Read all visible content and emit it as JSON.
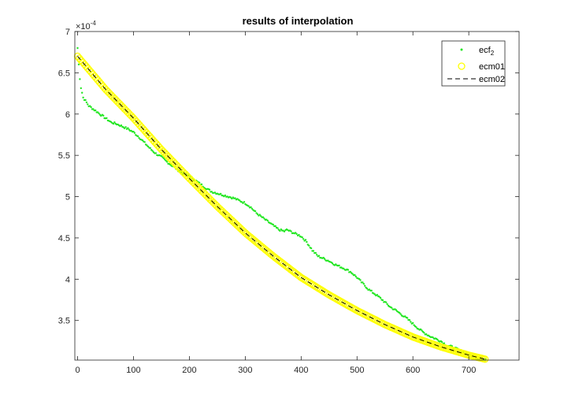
{
  "chart_data": {
    "type": "line",
    "title": "results of interpolation",
    "xlabel": "",
    "ylabel": "",
    "xlim": [
      -5,
      790
    ],
    "ylim": [
      0.000302,
      0.0007
    ],
    "y_exponent_label": "×10",
    "y_exponent_power": "-4",
    "x_ticks": [
      0,
      100,
      200,
      300,
      400,
      500,
      600,
      700
    ],
    "y_ticks": [
      3.5,
      4,
      4.5,
      5,
      5.5,
      6,
      6.5,
      7
    ],
    "y_tick_scale": 0.0001,
    "grid": false,
    "legend_position": "top-right",
    "series": [
      {
        "name": "ecf",
        "name_subscript": "2",
        "style": "dots",
        "color": "#22e622",
        "x": [
          0,
          2,
          5,
          10,
          20,
          30,
          40,
          50,
          60,
          70,
          80,
          90,
          100,
          110,
          120,
          130,
          140,
          150,
          160,
          170,
          180,
          190,
          200,
          210,
          220,
          230,
          240,
          250,
          260,
          270,
          280,
          290,
          300,
          310,
          320,
          330,
          340,
          350,
          360,
          370,
          375,
          380,
          390,
          400,
          410,
          420,
          430,
          440,
          450,
          460,
          470,
          480,
          490,
          500,
          510,
          520,
          530,
          540,
          550,
          560,
          570,
          580,
          590,
          600,
          610,
          620,
          630,
          640,
          650,
          660,
          670,
          680,
          690,
          700,
          710,
          720,
          730
        ],
        "y": [
          0.00068,
          0.00066,
          0.000635,
          0.00062,
          0.00061,
          0.000605,
          0.0006,
          0.000595,
          0.00059,
          0.000588,
          0.000585,
          0.000582,
          0.000578,
          0.000572,
          0.000565,
          0.000558,
          0.000552,
          0.000548,
          0.000542,
          0.000537,
          0.000532,
          0.000528,
          0.000525,
          0.00052,
          0.000515,
          0.00051,
          0.000506,
          0.000504,
          0.000502,
          0.0005,
          0.000498,
          0.000495,
          0.000492,
          0.000487,
          0.00048,
          0.000475,
          0.00047,
          0.000465,
          0.00046,
          0.000458,
          0.00046,
          0.000458,
          0.000455,
          0.000452,
          0.000445,
          0.000435,
          0.000428,
          0.000425,
          0.000422,
          0.000418,
          0.000415,
          0.000412,
          0.000408,
          0.000402,
          0.000395,
          0.000388,
          0.000383,
          0.000378,
          0.000372,
          0.000366,
          0.000362,
          0.000357,
          0.000352,
          0.000346,
          0.00034,
          0.000335,
          0.000331,
          0.000328,
          0.000325,
          0.00032,
          0.000318,
          0.000315,
          0.000312,
          0.000308,
          0.000305,
          0.000303,
          0.000302
        ]
      },
      {
        "name": "ecm01",
        "style": "circles",
        "color": "#ffff00",
        "x": [
          0,
          50,
          100,
          150,
          200,
          250,
          300,
          350,
          400,
          450,
          500,
          550,
          600,
          650,
          700,
          730
        ],
        "y": [
          0.00067,
          0.00063,
          0.000595,
          0.000557,
          0.000522,
          0.000488,
          0.000456,
          0.000428,
          0.000402,
          0.000381,
          0.000362,
          0.000345,
          0.00033,
          0.000318,
          0.000308,
          0.000303
        ]
      },
      {
        "name": "ecm02",
        "style": "dashed",
        "color": "#000000",
        "x": [
          0,
          50,
          100,
          150,
          200,
          250,
          300,
          350,
          400,
          450,
          500,
          550,
          600,
          650,
          700,
          730
        ],
        "y": [
          0.00067,
          0.00063,
          0.000595,
          0.000557,
          0.000522,
          0.000488,
          0.000456,
          0.000428,
          0.000402,
          0.000381,
          0.000362,
          0.000345,
          0.00033,
          0.000318,
          0.000308,
          0.000303
        ]
      }
    ]
  }
}
